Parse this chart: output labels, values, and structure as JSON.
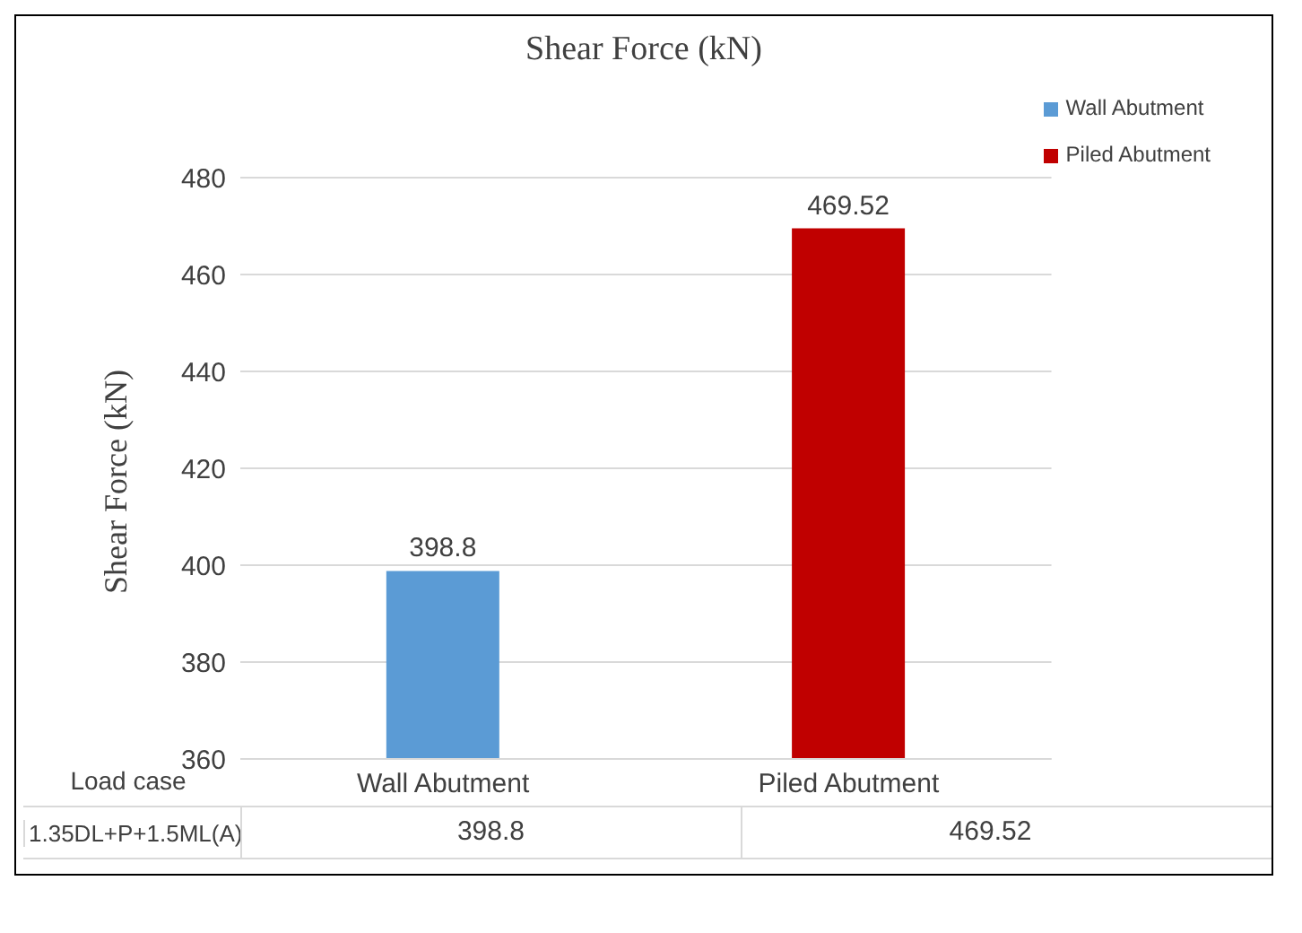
{
  "chart_data": {
    "type": "bar",
    "title": "Shear Force (kN)",
    "ylabel": "Shear Force (kN)",
    "xlabel": "Load case",
    "categories": [
      "Wall Abutment",
      "Piled Abutment"
    ],
    "series": [
      {
        "name": "Wall Abutment",
        "color": "#5b9bd5",
        "values": [
          398.8,
          null
        ]
      },
      {
        "name": "Piled Abutment",
        "color": "#c00000",
        "values": [
          null,
          469.52
        ]
      }
    ],
    "stacked": true,
    "annotations": [
      "1.35DL+P+1.5ML(A)",
      "398.8",
      "469.52"
    ],
    "ylim": [
      360,
      480
    ],
    "yticks": [
      360,
      380,
      400,
      420,
      440,
      460,
      480
    ],
    "grid": "y",
    "legend": "top right",
    "data_labels": true
  }
}
